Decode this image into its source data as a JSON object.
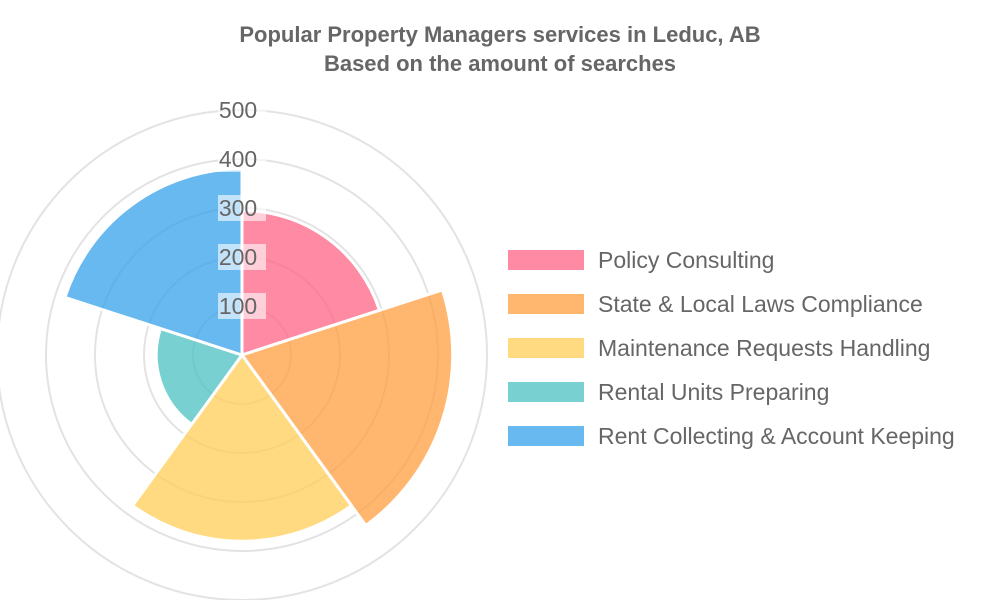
{
  "chart_data": {
    "type": "polarArea",
    "title": "Popular Property Managers services in Leduc, AB",
    "subtitle": "Based on the amount of searches",
    "categories": [
      "Policy Consulting",
      "State & Local Laws Compliance",
      "Maintenance Requests Handling",
      "Rental Units Preparing",
      "Rent Collecting & Account Keeping"
    ],
    "values": [
      295,
      430,
      380,
      175,
      380
    ],
    "colors": [
      "#ff6384",
      "#ff9f40",
      "#ffcd56",
      "#4bc0c0",
      "#36a2eb"
    ],
    "r_ticks": [
      "100",
      "200",
      "300",
      "400",
      "500"
    ],
    "r_max": 500,
    "grid": true,
    "legend": "right"
  }
}
